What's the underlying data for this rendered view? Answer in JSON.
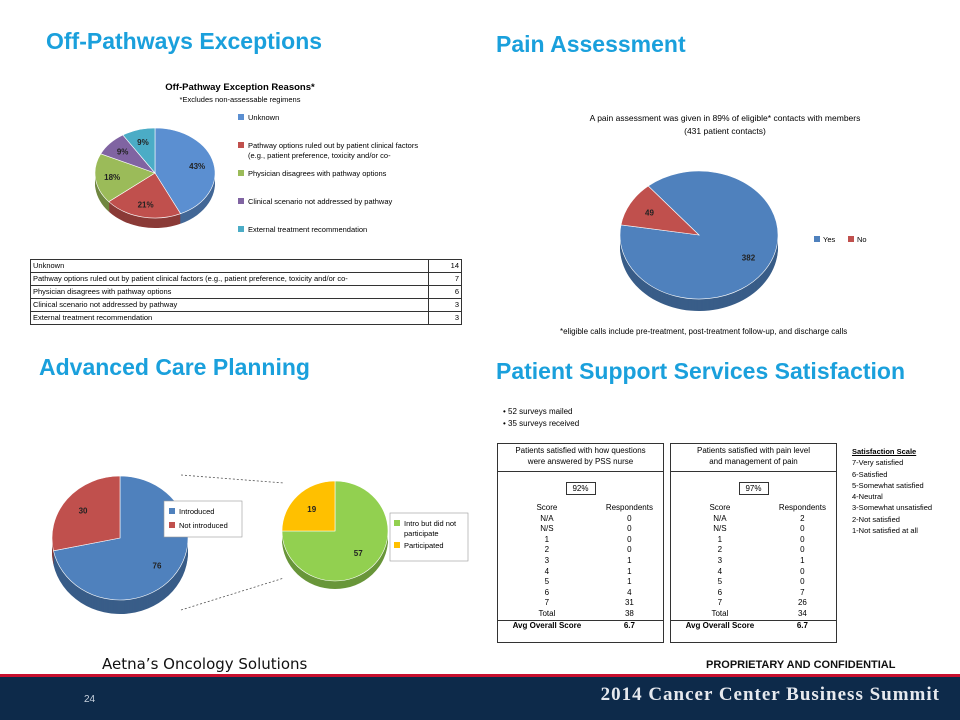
{
  "titles": {
    "off_pathways": "Off-Pathways Exceptions",
    "pain": "Pain Assessment",
    "advanced": "Advanced Care Planning",
    "pss": "Patient Support Services Satisfaction"
  },
  "chart_data": [
    {
      "type": "pie",
      "title": "Off-Pathway Exception Reasons*",
      "subtitle": "*Excludes non-assessable regimens",
      "categories": [
        "Unknown",
        "Pathway options ruled out by patient clinical factors (e.g., patient preference, toxicity and/or co-",
        "Physician disagrees with pathway options",
        "Clinical scenario not addressed by pathway",
        "External treatment recommendation"
      ],
      "values": [
        43,
        21,
        18,
        9,
        9
      ],
      "labels": [
        "43%",
        "21%",
        "18%",
        "9%",
        "9%"
      ],
      "colors": [
        "#5b8fd1",
        "#c0504d",
        "#9bbb59",
        "#8064a2",
        "#4bacc6"
      ],
      "legend_line1": [
        "Unknown",
        "Pathway options ruled out by patient clinical factors",
        "Physician disagrees with pathway options",
        "Clinical scenario not addressed by pathway",
        "External treatment recommendation"
      ],
      "legend_line2": [
        "",
        "(e.g., patient preference, toxicity and/or co-",
        "",
        "",
        ""
      ],
      "table": [
        {
          "label": "Unknown",
          "value": "14"
        },
        {
          "label": "Pathway options ruled out by patient clinical factors (e.g., patient preference, toxicity and/or co-",
          "value": "7"
        },
        {
          "label": "Physician disagrees with pathway options",
          "value": "6"
        },
        {
          "label": "Clinical scenario not addressed by pathway",
          "value": "3"
        },
        {
          "label": "External treatment recommendation",
          "value": "3"
        }
      ]
    },
    {
      "type": "pie",
      "title": "A pain assessment was given in 89% of eligible* contacts with members",
      "subtitle": "(431 patient contacts)",
      "categories": [
        "Yes",
        "No"
      ],
      "values": [
        382,
        49
      ],
      "colors": [
        "#4f81bd",
        "#c0504d"
      ],
      "legend_placement": "right",
      "footnote": "*eligible calls include pre-treatment, post-treatment follow-up, and discharge calls"
    },
    {
      "type": "pie",
      "categories": [
        "Introduced",
        "Not introduced"
      ],
      "values": [
        76,
        30
      ],
      "colors": [
        "#4f81bd",
        "#c0504d"
      ],
      "legend_placement": "right"
    },
    {
      "type": "pie",
      "categories": [
        "Intro but did not participate",
        "Participated"
      ],
      "legend_line1": [
        "Intro but did not",
        "Participated"
      ],
      "legend_line2": [
        "participate",
        ""
      ],
      "values": [
        57,
        19
      ],
      "colors": [
        "#92d050",
        "#ffc000"
      ],
      "legend_placement": "right"
    }
  ],
  "pss": {
    "bullets": [
      "52 surveys mailed",
      "35 surveys received"
    ],
    "tables": [
      {
        "header": [
          "Patients satisfied with how questions",
          "were answered by PSS nurse"
        ],
        "percent": "92%",
        "col1": "Score",
        "col2": "Respondents",
        "rows": [
          [
            "N/A",
            "0"
          ],
          [
            "N/S",
            "0"
          ],
          [
            "1",
            "0"
          ],
          [
            "2",
            "0"
          ],
          [
            "3",
            "1"
          ],
          [
            "4",
            "1"
          ],
          [
            "5",
            "1"
          ],
          [
            "6",
            "4"
          ],
          [
            "7",
            "31"
          ],
          [
            "Total",
            "38"
          ]
        ],
        "avg_label": "Avg Overall Score",
        "avg_value": "6.7"
      },
      {
        "header": [
          "Patients satisfied with pain level",
          "and management of pain"
        ],
        "percent": "97%",
        "col1": "Score",
        "col2": "Respondents",
        "rows": [
          [
            "N/A",
            "2"
          ],
          [
            "N/S",
            "0"
          ],
          [
            "1",
            "0"
          ],
          [
            "2",
            "0"
          ],
          [
            "3",
            "1"
          ],
          [
            "4",
            "0"
          ],
          [
            "5",
            "0"
          ],
          [
            "6",
            "7"
          ],
          [
            "7",
            "26"
          ],
          [
            "Total",
            "34"
          ]
        ],
        "avg_label": "Avg Overall Score",
        "avg_value": "6.7"
      }
    ],
    "scale_title": "Satisfaction Scale",
    "scale": [
      "7-Very satisfied",
      "6-Satisfied",
      "5-Somewhat satisfied",
      "4-Neutral",
      "3-Somewhat unsatisfied",
      "2-Not satisfied",
      "1-Not satisfied at all"
    ]
  },
  "footer": {
    "company": "Aetna’s Oncology Solutions",
    "confidential": "PROPRIETARY AND CONFIDENTIAL",
    "page": "24",
    "event": "2014 Cancer Center Business Summit"
  }
}
